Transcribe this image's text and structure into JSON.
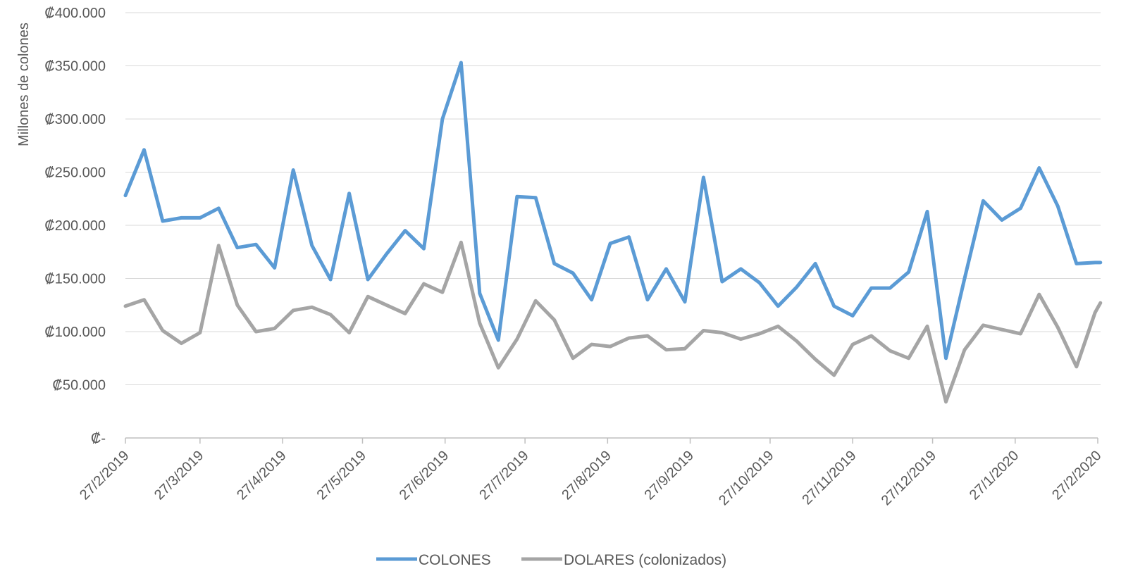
{
  "chart_data": {
    "type": "line",
    "title": "",
    "xlabel": "",
    "ylabel": "Millones de colones",
    "ylim": [
      0,
      400000
    ],
    "y_ticks": [
      0,
      50000,
      100000,
      150000,
      200000,
      250000,
      300000,
      350000,
      400000
    ],
    "y_tick_labels": [
      "₡-",
      "₡50.000",
      "₡100.000",
      "₡150.000",
      "₡200.000",
      "₡250.000",
      "₡300.000",
      "₡350.000",
      "₡400.000"
    ],
    "x_range": [
      "2019-02-27",
      "2020-02-27"
    ],
    "x_ticks": [
      "2019-02-27",
      "2019-03-27",
      "2019-04-27",
      "2019-05-27",
      "2019-06-27",
      "2019-07-27",
      "2019-08-27",
      "2019-09-27",
      "2019-10-27",
      "2019-11-27",
      "2019-12-27",
      "2020-01-27",
      "2020-02-27"
    ],
    "x_tick_labels": [
      "27/2/2019",
      "27/3/2019",
      "27/4/2019",
      "27/5/2019",
      "27/6/2019",
      "27/7/2019",
      "27/8/2019",
      "27/9/2019",
      "27/10/2019",
      "27/11/2019",
      "27/12/2019",
      "27/1/2020",
      "27/2/2020"
    ],
    "grid": true,
    "legend_position": "bottom",
    "x": [
      "2019-02-27",
      "2019-03-06",
      "2019-03-13",
      "2019-03-20",
      "2019-03-27",
      "2019-04-03",
      "2019-04-10",
      "2019-04-17",
      "2019-04-24",
      "2019-05-01",
      "2019-05-08",
      "2019-05-15",
      "2019-05-22",
      "2019-05-29",
      "2019-06-05",
      "2019-06-12",
      "2019-06-19",
      "2019-06-26",
      "2019-07-03",
      "2019-07-10",
      "2019-07-17",
      "2019-07-24",
      "2019-07-31",
      "2019-08-07",
      "2019-08-14",
      "2019-08-21",
      "2019-08-28",
      "2019-09-04",
      "2019-09-11",
      "2019-09-18",
      "2019-09-25",
      "2019-10-02",
      "2019-10-09",
      "2019-10-16",
      "2019-10-23",
      "2019-10-30",
      "2019-11-06",
      "2019-11-13",
      "2019-11-20",
      "2019-11-27",
      "2019-12-04",
      "2019-12-11",
      "2019-12-18",
      "2019-12-25",
      "2020-01-01",
      "2020-01-08",
      "2020-01-15",
      "2020-01-22",
      "2020-01-29",
      "2020-02-05",
      "2020-02-12",
      "2020-02-19",
      "2020-02-26",
      "2020-02-28"
    ],
    "series": [
      {
        "name": "COLONES",
        "color": "#5B9BD5",
        "values": [
          228000,
          271000,
          204000,
          207000,
          207000,
          216000,
          179000,
          182000,
          160000,
          252000,
          181000,
          149000,
          230000,
          149000,
          173000,
          195000,
          178000,
          300000,
          353000,
          136000,
          92000,
          227000,
          226000,
          164000,
          155000,
          130000,
          183000,
          189000,
          130000,
          159000,
          128000,
          245000,
          147000,
          159000,
          146000,
          124000,
          142000,
          164000,
          124000,
          115000,
          141000,
          141000,
          156000,
          213000,
          75000,
          150000,
          223000,
          205000,
          216000,
          254000,
          218000,
          164000,
          165000,
          165000
        ]
      },
      {
        "name": "DOLARES (colonizados)",
        "color": "#A5A5A5",
        "values": [
          124000,
          130000,
          101000,
          89000,
          99000,
          181000,
          125000,
          100000,
          103000,
          120000,
          123000,
          116000,
          99000,
          133000,
          125000,
          117000,
          145000,
          137000,
          184000,
          108000,
          66000,
          93000,
          129000,
          111000,
          75000,
          88000,
          86000,
          94000,
          96000,
          83000,
          84000,
          101000,
          99000,
          93000,
          98000,
          105000,
          91000,
          74000,
          59000,
          88000,
          96000,
          82000,
          75000,
          105000,
          34000,
          83000,
          106000,
          102000,
          98000,
          135000,
          104000,
          67000,
          118000,
          127000
        ]
      }
    ]
  }
}
